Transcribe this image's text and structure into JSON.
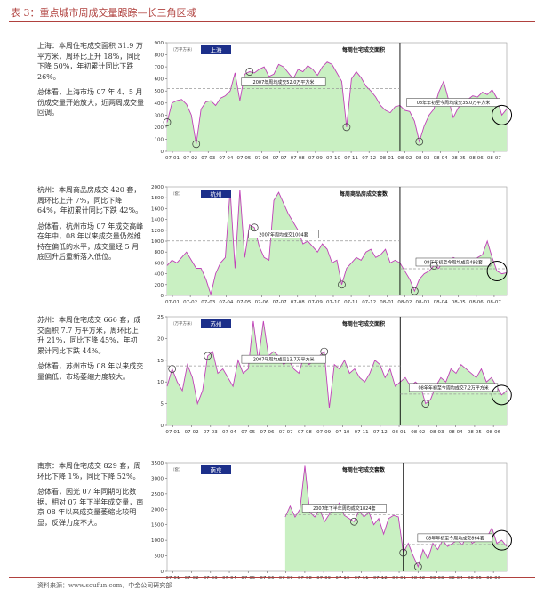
{
  "title": "表 3：重点城市周成交量跟踪—长三角区域",
  "source": "资料来源：www.soufun.com，中金公司研究部",
  "panels": [
    {
      "desc": [
        "上海：本周住宅成交面积 31.9 万平方米，周环比上升 18%，同比下降 50%，年初累计同比下跌 26%。",
        "总体看，上海市场 07 年 4、5 月份成交量开始放大，近两周成交量回调。"
      ]
    },
    {
      "desc": [
        "杭州：本周商品房成交 420 套，周环比上升 7%，同比下降 64%，年初累计同比下跌 42%。",
        "总体看，杭州市场 07 年成交高峰在年中，08 年以来成交量仍然维持在偏低的水平，成交量经 5 月底回升后重新落入低位。"
      ]
    },
    {
      "desc": [
        "苏州：本周住宅成交 666 套，成交面积 7.7 万平方米，周环比上升 21%，同比下降 45%，年初累计同比下跌 44%。",
        "总体看，苏州市场 08 年以来成交量偏低，市场萎缩力度较大。"
      ]
    },
    {
      "desc": [
        "南京：本周住宅成交 829 套，周环比下降 1%，同比下降 52%。",
        "总体看，因光 07 年同期可比数据，相对 07 年下半年成交量，南京 08 年以来成交量萎缩比较明显，反弹力度不大。"
      ]
    }
  ],
  "chart_data": [
    {
      "type": "area",
      "city": "上海",
      "unit": "（万平方米）",
      "title": "每周住宅成交面积",
      "ylim": [
        0,
        900
      ],
      "yticks": [
        0,
        100,
        200,
        300,
        400,
        500,
        600,
        700,
        800,
        900
      ],
      "xticks": [
        "07-01",
        "07-02",
        "07-03",
        "07-04",
        "07-05",
        "07-06",
        "07-07",
        "07-08",
        "07-09",
        "07-10",
        "07-11",
        "07-12",
        "08-01",
        "08-02",
        "08-03",
        "08-04",
        "08-05",
        "08-06",
        "08-07"
      ],
      "values": [
        240,
        400,
        420,
        430,
        390,
        300,
        60,
        350,
        410,
        420,
        380,
        440,
        460,
        500,
        650,
        420,
        640,
        660,
        650,
        680,
        700,
        620,
        640,
        720,
        700,
        650,
        600,
        680,
        660,
        710,
        680,
        630,
        700,
        740,
        720,
        650,
        580,
        200,
        600,
        660,
        610,
        540,
        500,
        450,
        380,
        340,
        320,
        370,
        380,
        340,
        330,
        250,
        80,
        210,
        300,
        350,
        490,
        580,
        430,
        280,
        360,
        400,
        430,
        460,
        450,
        490,
        470,
        510,
        440,
        300,
        350
      ],
      "avg_left": {
        "label": "2007年周均成交52.0万平方米",
        "value": 520
      },
      "avg_right": {
        "label": "08年年初至今周均成交35.0万平方米",
        "value": 350
      },
      "markers": [
        0,
        6,
        17,
        37,
        52
      ],
      "divider": 48,
      "circled": 69
    },
    {
      "type": "area",
      "city": "杭州",
      "unit": "（套）",
      "title": "每周商品房成交套数",
      "ylim": [
        0,
        2000
      ],
      "yticks": [
        0,
        200,
        400,
        600,
        800,
        1000,
        1200,
        1400,
        1600,
        1800,
        2000
      ],
      "xticks": [
        "07-01",
        "07-02",
        "07-03",
        "07-04",
        "07-05",
        "07-06",
        "07-07",
        "07-08",
        "07-09",
        "07-10",
        "07-11",
        "07-12",
        "08-01",
        "08-02",
        "08-03",
        "08-04",
        "08-05",
        "08-06",
        "08-07"
      ],
      "values": [
        550,
        650,
        600,
        700,
        800,
        650,
        500,
        500,
        300,
        20,
        400,
        600,
        700,
        1950,
        500,
        1950,
        700,
        1300,
        1250,
        900,
        700,
        650,
        1750,
        1900,
        1700,
        1500,
        1350,
        1200,
        950,
        1000,
        900,
        800,
        950,
        850,
        600,
        650,
        200,
        500,
        600,
        700,
        650,
        800,
        850,
        700,
        750,
        850,
        600,
        650,
        600,
        450,
        300,
        80,
        300,
        400,
        450,
        550,
        500,
        650,
        600,
        700,
        650,
        550,
        650,
        600,
        700,
        750,
        1000,
        700,
        450,
        400,
        420
      ],
      "avg_left": {
        "label": "2007年周均成交1004套",
        "value": 1004
      },
      "avg_right": {
        "label": "08年年初至今周均成交492套",
        "value": 492
      },
      "markers": [
        18,
        36,
        51,
        55
      ],
      "divider": 48,
      "circled": 68
    },
    {
      "type": "area",
      "city": "苏州",
      "unit": "（万平方米）",
      "title": "每周住宅成交面积",
      "ylim": [
        0,
        25
      ],
      "yticks": [
        0,
        5,
        10,
        15,
        20,
        25
      ],
      "xticks": [
        "07-01",
        "07-02",
        "07-03",
        "07-04",
        "07-05",
        "07-06",
        "07-07",
        "07-08",
        "07-09",
        "07-10",
        "07-11",
        "07-12",
        "08-01",
        "08-02",
        "08-03",
        "08-04",
        "08-05",
        "08-06"
      ],
      "values": [
        9,
        13,
        10,
        8,
        14,
        11,
        5,
        8,
        16,
        17,
        12,
        13,
        11,
        9,
        15,
        12,
        13,
        24,
        15,
        24,
        16,
        17,
        16,
        14,
        15,
        13,
        12,
        16,
        14,
        15,
        16,
        17,
        4,
        14,
        13,
        15,
        12,
        13,
        11,
        10,
        12,
        15,
        14,
        11,
        13,
        9,
        10,
        11,
        9,
        10,
        9,
        5,
        6,
        9,
        11,
        10,
        13,
        12,
        14,
        13,
        12,
        11,
        13,
        10,
        11,
        9,
        7,
        8
      ],
      "avg_left": {
        "label": "2007年周均成交13.7万平方米",
        "value": 13.7
      },
      "avg_right": {
        "label": "08年年初至今周均成交7.2万平方米",
        "value": 7.2
      },
      "markers": [
        1,
        8,
        31,
        51
      ],
      "divider": 46,
      "circled": 66
    },
    {
      "type": "area",
      "city": "南京",
      "unit": "（套）",
      "title": "每周住宅成交套数",
      "ylim": [
        0,
        3500
      ],
      "yticks": [
        0,
        500,
        1000,
        1500,
        2000,
        2500,
        3000,
        3500
      ],
      "xticks": [
        "07-01",
        "07-02",
        "07-03",
        "07-04",
        "07-05",
        "07-06",
        "07-07",
        "07-08",
        "07-09",
        "07-10",
        "07-11",
        "07-12",
        "08-01",
        "08-02",
        "08-03",
        "08-04",
        "08-05",
        "08-06"
      ],
      "start_index": 24,
      "values": [
        null,
        null,
        null,
        null,
        null,
        null,
        null,
        null,
        null,
        null,
        null,
        null,
        null,
        null,
        null,
        null,
        null,
        null,
        null,
        null,
        null,
        null,
        null,
        null,
        1750,
        2100,
        1750,
        2000,
        3400,
        1900,
        1750,
        2000,
        1600,
        1850,
        2000,
        2200,
        1800,
        1700,
        1600,
        1950,
        1750,
        1900,
        1500,
        1700,
        1200,
        1700,
        1800,
        1750,
        600,
        900,
        500,
        150,
        700,
        400,
        900,
        700,
        1000,
        800,
        900,
        1000,
        850,
        1200,
        900,
        1000,
        1050,
        1100,
        1400,
        900,
        1000,
        800
      ],
      "avg_left": {
        "label": "2007年下半年周均成交1824套",
        "value": 1824
      },
      "avg_right": {
        "label": "08年年初至今周均成交864套",
        "value": 864
      },
      "markers": [
        38,
        48,
        51
      ],
      "divider": 48,
      "circled": 68
    }
  ]
}
